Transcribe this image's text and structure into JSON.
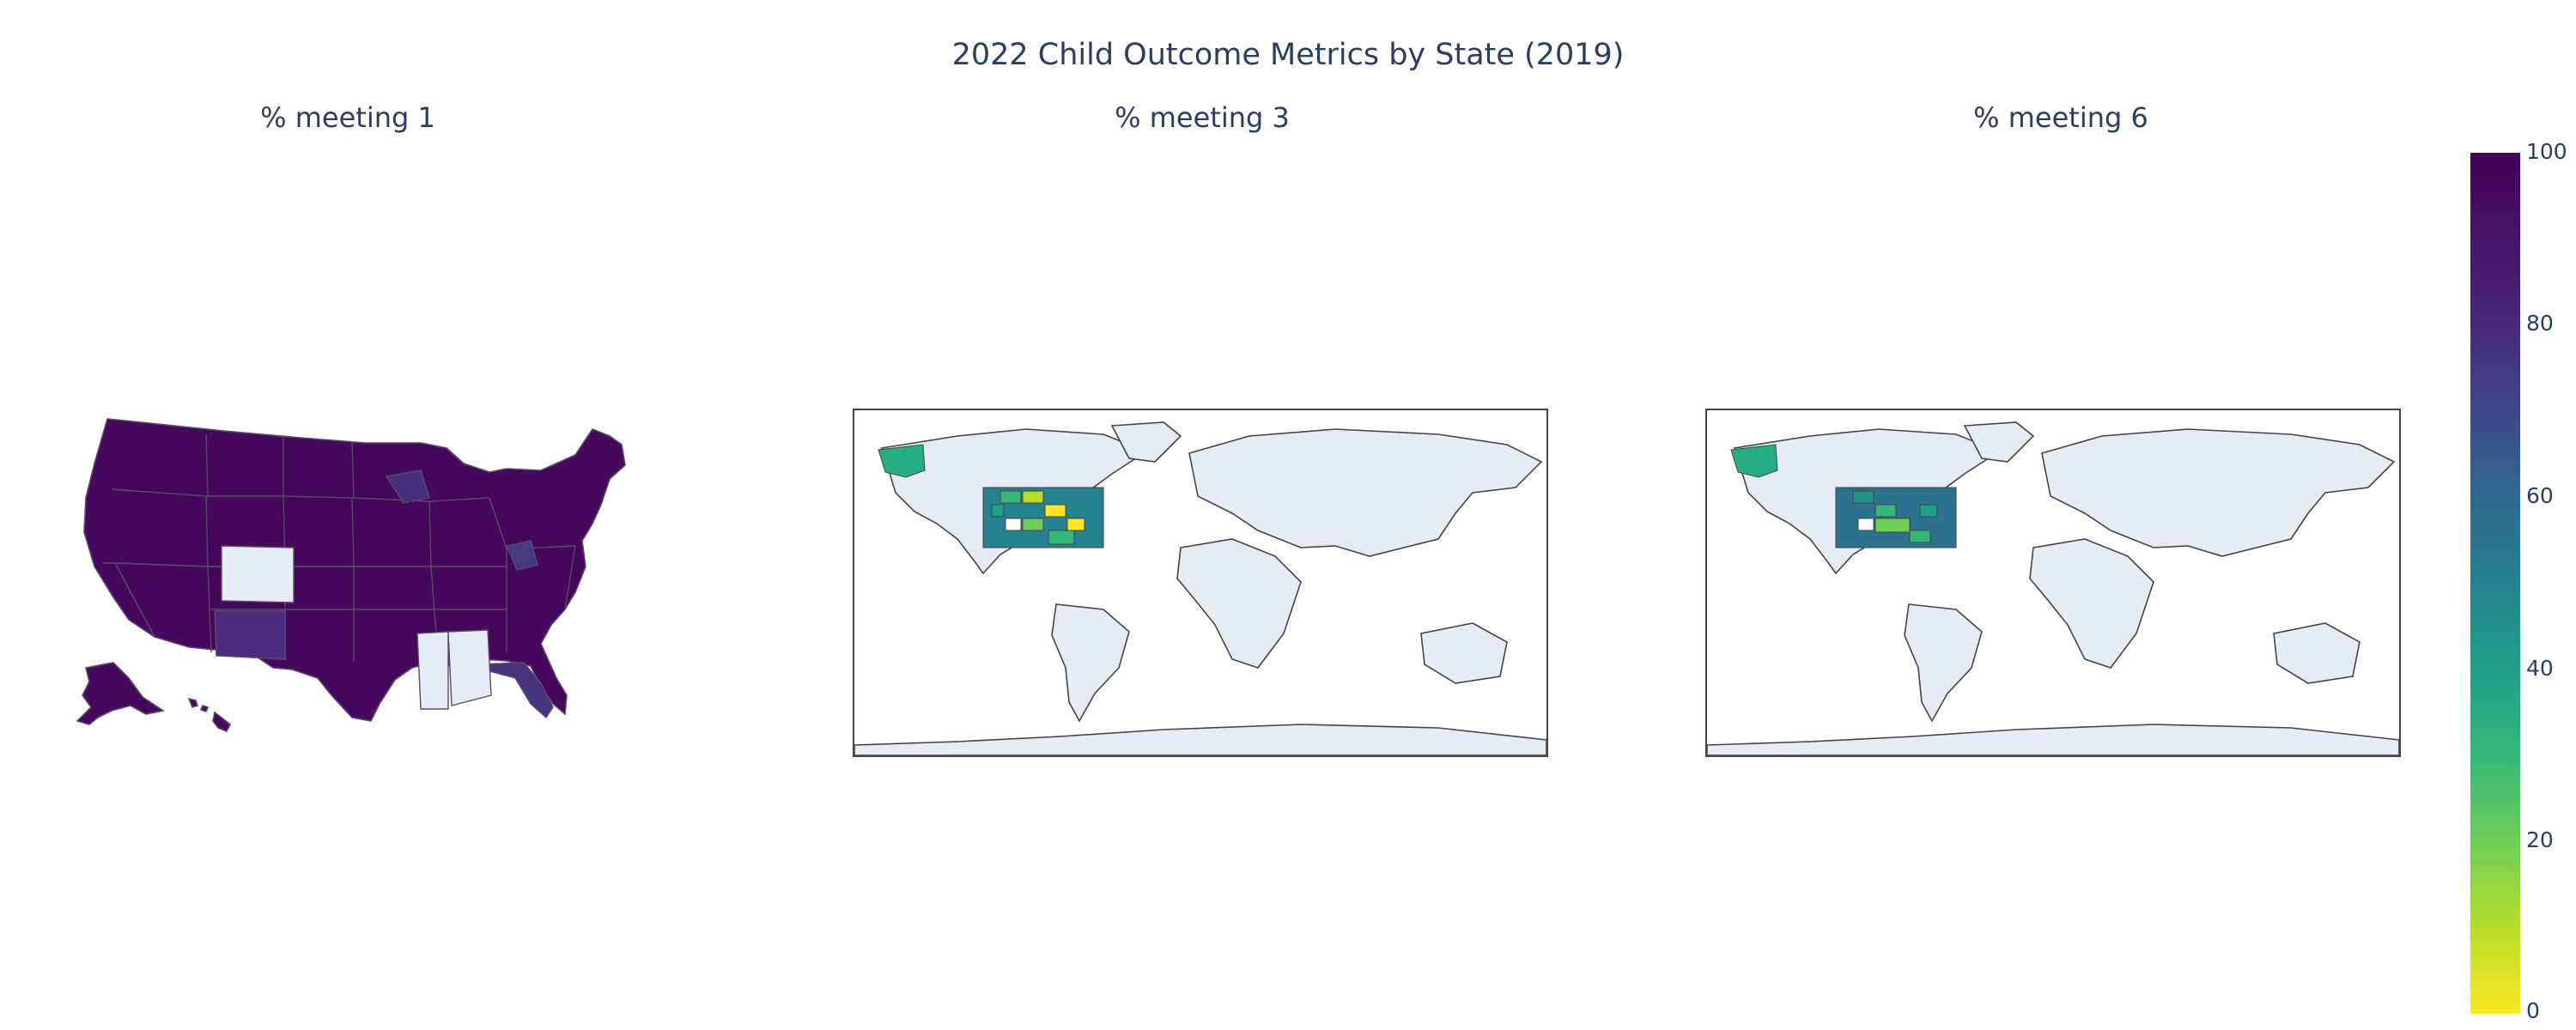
{
  "title": "2022 Child Outcome Metrics by State (2019)",
  "subplots": [
    {
      "title": "% meeting 1"
    },
    {
      "title": "% meeting 3"
    },
    {
      "title": "% meeting 6"
    }
  ],
  "colorbar": {
    "ticks": [
      "0",
      "20",
      "40",
      "60",
      "80",
      "100"
    ],
    "colorscale": "Viridis (reversed)",
    "range": [
      0,
      100
    ]
  },
  "colors": {
    "land": "#e5ecf6",
    "border": "#444444",
    "high": "#440154",
    "mid": "#21918c",
    "low": "#fde725"
  },
  "chart_data": [
    {
      "type": "choropleth",
      "title": "% meeting 1",
      "scope": "usa",
      "zmin": 0,
      "zmax": 100,
      "note_values": "most states near 90-100; CO and AL no data"
    },
    {
      "type": "choropleth",
      "title": "% meeting 3",
      "scope": "world",
      "zmin": 0,
      "zmax": 100
    },
    {
      "type": "choropleth",
      "title": "% meeting 6",
      "scope": "world",
      "zmin": 0,
      "zmax": 100
    }
  ]
}
